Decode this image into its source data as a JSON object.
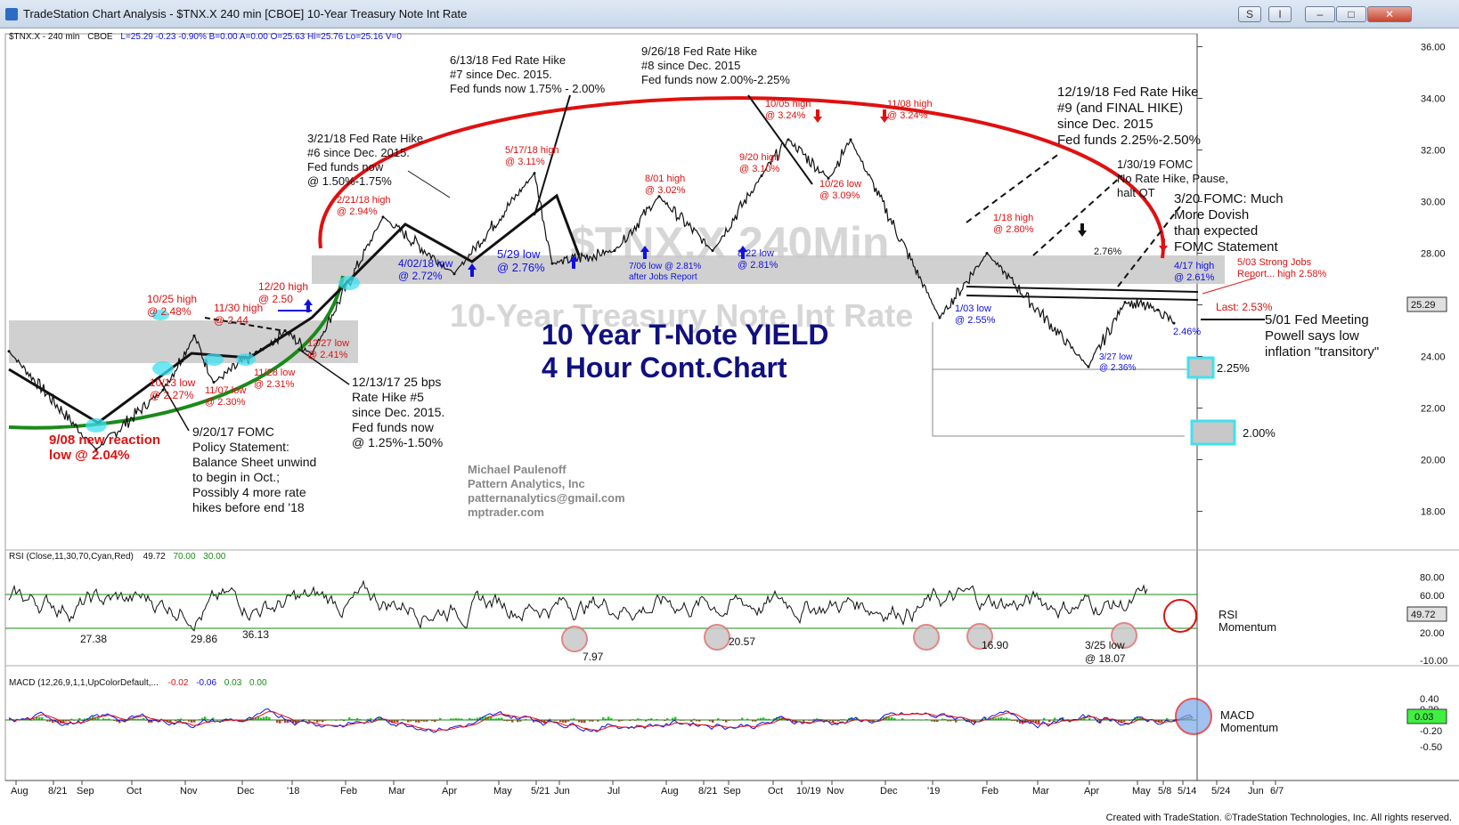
{
  "window": {
    "title": "TradeStation Chart Analysis - $TNX.X 240 min [CBOE] 10-Year Treasury Note Int Rate",
    "buttons": [
      "S",
      "I"
    ]
  },
  "footer": "Created with TradeStation. ©TradeStation Technologies, Inc. All rights reserved.",
  "header": {
    "symbol": "$TNX.X - 240 min",
    "exchange": "CBOE",
    "values": "L=25.29  -0.23  -0.90%  B=0.00  A=0.00  O=25.63  Hi=25.76  Lo=25.16  V=0"
  },
  "colors": {
    "red": "#e01010",
    "blue": "#1010e0",
    "navy": "#101080",
    "green": "#1a8a1a",
    "band": "#c8c8c8",
    "cyan": "#40e0f0"
  },
  "watermark": {
    "symbol": "$TNX.X 240Min",
    "name": "10-Year Treasury Note Int Rate"
  },
  "title_lines": [
    "10 Year T-Note YIELD",
    "4 Hour Cont.Chart"
  ],
  "author_lines": [
    "Michael Paulenoff",
    "Pattern Analytics, Inc",
    "patternanalytics@gmail.com",
    "mptrader.com"
  ],
  "price_panel": {
    "ticks": [
      "36.00",
      "34.00",
      "32.00",
      "30.00",
      "28.00",
      "26.00",
      "24.00",
      "22.00",
      "20.00",
      "18.00"
    ],
    "last_value": "25.29",
    "last_label": "Last: 2.53%",
    "support_boxes": [
      "2.25%",
      "2.00%"
    ]
  },
  "annotations": {
    "black": [
      [
        "3/21/18 Fed Rate Hike",
        "#6 since Dec. 2015.",
        "Fed funds now",
        "@ 1.50%-1.75%"
      ],
      [
        "6/13/18 Fed Rate Hike",
        "#7 since Dec. 2015.",
        "Fed funds now 1.75% - 2.00%"
      ],
      [
        "9/26/18 Fed Rate Hike",
        "#8 since Dec. 2015",
        "Fed funds now 2.00%-2.25%"
      ],
      [
        "12/19/18 Fed Rate Hike",
        "#9 (and FINAL HIKE)",
        "since Dec. 2015",
        "Fed funds 2.25%-2.50%"
      ],
      [
        "1/30/19 FOMC",
        "No Rate Hike, Pause,",
        "halt QT"
      ],
      [
        "3/20 FOMC: Much",
        "More Dovish",
        "than expected",
        "FOMC Statement"
      ],
      [
        "12/13/17 25 bps",
        "Rate Hike #5",
        "since Dec. 2015.",
        "Fed funds now",
        "@ 1.25%-1.50%"
      ],
      [
        "9/20/17 FOMC",
        "Policy Statement:",
        "Balance Sheet unwind",
        "to begin in Oct.;",
        "Possibly 4 more rate",
        "hikes before end '18"
      ],
      [
        "5/01 Fed Meeting",
        "Powell says low",
        "inflation \"transitory\""
      ],
      [
        "2.76%"
      ]
    ],
    "red": [
      [
        "10/25 high",
        "@ 2.48%"
      ],
      [
        "11/30 high",
        "@ 2.44"
      ],
      [
        "12/20 high",
        "@ 2.50"
      ],
      [
        "12/27 low",
        "@ 2.41%"
      ],
      [
        "10/13 low",
        "@ 2.27%"
      ],
      [
        "11/07 low",
        "@ 2.30%"
      ],
      [
        "11/28 low",
        "@ 2.31%"
      ],
      [
        "2/21/18 high",
        "@ 2.94%"
      ],
      [
        "5/17/18 high",
        "@ 3.11%"
      ],
      [
        "8/01 high",
        "@ 3.02%"
      ],
      [
        "9/20 high",
        "@ 3.10%"
      ],
      [
        "10/05 high",
        "@ 3.24%"
      ],
      [
        "11/08 high",
        "@ 3.24%"
      ],
      [
        "10/26 low",
        "@ 3.09%"
      ],
      [
        "1/18 high",
        "@ 2.80%"
      ],
      [
        "5/03 Strong Jobs",
        "Report... high 2.58%"
      ],
      [
        "9/08 new reaction",
        "low @ 2.04%"
      ]
    ],
    "blue": [
      [
        "4/02/18 low",
        "@ 2.72%"
      ],
      [
        "5/29 low",
        "@ 2.76%"
      ],
      [
        "7/06 low @ 2.81%",
        "after Jobs Report"
      ],
      [
        "8/22 low",
        "@ 2.81%"
      ],
      [
        "1/03 low",
        "@ 2.55%"
      ],
      [
        "3/27 low",
        "@ 2.36%"
      ],
      [
        "4/17 high",
        "@ 2.61%"
      ],
      [
        "2.46%"
      ]
    ]
  },
  "rsi_panel": {
    "header": "RSI (Close,11,30,70,Cyan,Red)",
    "header_values": [
      "49.72",
      "70.00",
      "30.00"
    ],
    "ticks": [
      "80.00",
      "60.00",
      "40.00",
      "20.00",
      "-10.00"
    ],
    "last_value": "49.72",
    "label_lines": [
      "RSI",
      "Momentum"
    ],
    "lows": [
      "27.38",
      "29.86",
      "36.13",
      "7.97",
      "20.57",
      "16.90",
      "3/25 low",
      "@ 18.07"
    ]
  },
  "macd_panel": {
    "header": "MACD (12,26,9,1,1,UpColorDefault,...",
    "header_values": [
      "-0.02",
      "-0.06",
      "0.03",
      "0.00"
    ],
    "ticks": [
      "0.40",
      "0.20",
      "-0.20",
      "-0.50"
    ],
    "last_value": "0.03",
    "label_lines": [
      "MACD",
      "Momentum"
    ]
  },
  "x_axis": [
    "Aug",
    "8/21",
    "Sep",
    "Oct",
    "Nov",
    "Dec",
    "'18",
    "Feb",
    "Mar",
    "Apr",
    "May",
    "5/21",
    "Jun",
    "Jul",
    "Aug",
    "8/21",
    "Sep",
    "Oct",
    "10/19",
    "Nov",
    "Dec",
    "'19",
    "Feb",
    "Mar",
    "Apr",
    "May",
    "5/8",
    "5/14",
    "5/24",
    "Jun",
    "6/7"
  ],
  "chart_data": {
    "type": "line",
    "title": "10 Year T-Note YIELD 4 Hour Cont.Chart",
    "xlabel": "",
    "ylabel": "",
    "ylim": [
      16.5,
      36.5
    ],
    "x": [
      "2017-08",
      "2017-09-08",
      "2017-10-13",
      "2017-10-25",
      "2017-11-07",
      "2017-11-30",
      "2017-12-20",
      "2017-12-27",
      "2018-02-21",
      "2018-04-02",
      "2018-05-17",
      "2018-05-29",
      "2018-07-06",
      "2018-08-01",
      "2018-08-22",
      "2018-09-20",
      "2018-10-05",
      "2018-10-26",
      "2018-11-08",
      "2019-01-03",
      "2019-01-18",
      "2019-03-27",
      "2019-04-17",
      "2019-05-03",
      "2019-05-07"
    ],
    "series": [
      {
        "values": [
          24.2,
          20.4,
          22.7,
          24.8,
          23.0,
          24.4,
          25.0,
          24.1,
          29.4,
          27.2,
          31.1,
          27.6,
          28.1,
          30.2,
          28.1,
          31.0,
          32.4,
          30.9,
          32.4,
          25.5,
          28.0,
          23.6,
          26.1,
          25.8,
          25.29
        ]
      }
    ],
    "rsi": {
      "upper": 70,
      "lower": 30,
      "last": 49.72,
      "marked_lows": [
        27.38,
        29.86,
        36.13,
        7.97,
        20.57,
        16.9,
        18.07
      ]
    },
    "macd": {
      "values": [
        -0.02,
        -0.06,
        0.03,
        0.0
      ]
    }
  }
}
